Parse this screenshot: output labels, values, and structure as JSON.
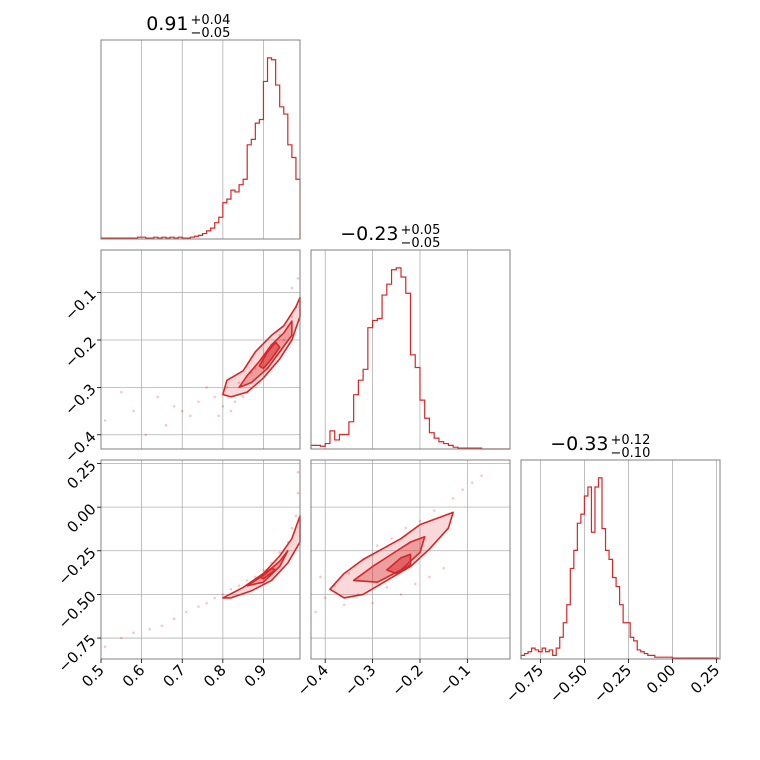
{
  "chart_data": {
    "type": "corner",
    "color": "#d62728",
    "grid": true,
    "parameters": [
      {
        "title_value": "0.91",
        "title_plus": "+0.04",
        "title_minus": "−0.05",
        "range": [
          0.5,
          0.99
        ],
        "ticks": [
          0.5,
          0.6,
          0.7,
          0.8,
          0.9
        ],
        "tick_labels": [
          "0.5",
          "0.6",
          "0.7",
          "0.8",
          "0.9"
        ],
        "hist": {
          "centers": [
            0.505,
            0.515,
            0.525,
            0.535,
            0.545,
            0.555,
            0.565,
            0.575,
            0.585,
            0.595,
            0.605,
            0.615,
            0.625,
            0.635,
            0.645,
            0.655,
            0.665,
            0.675,
            0.685,
            0.695,
            0.705,
            0.715,
            0.725,
            0.735,
            0.745,
            0.755,
            0.765,
            0.775,
            0.785,
            0.795,
            0.805,
            0.815,
            0.825,
            0.835,
            0.845,
            0.855,
            0.865,
            0.875,
            0.885,
            0.895,
            0.905,
            0.915,
            0.925,
            0.935,
            0.945,
            0.955,
            0.965,
            0.975,
            0.985
          ],
          "values": [
            0.005,
            0.005,
            0.005,
            0.005,
            0.005,
            0.005,
            0.005,
            0.005,
            0.005,
            0.01,
            0.01,
            0.005,
            0.005,
            0.01,
            0.005,
            0.01,
            0.005,
            0.01,
            0.005,
            0.01,
            0.005,
            0.005,
            0.01,
            0.015,
            0.02,
            0.03,
            0.045,
            0.06,
            0.09,
            0.12,
            0.2,
            0.22,
            0.27,
            0.26,
            0.3,
            0.33,
            0.52,
            0.55,
            0.64,
            0.66,
            0.87,
            1.0,
            0.99,
            0.85,
            0.73,
            0.69,
            0.52,
            0.45,
            0.33
          ]
        }
      },
      {
        "title_value": "−0.23",
        "title_plus": "+0.05",
        "title_minus": "−0.05",
        "range": [
          -0.43,
          -0.01
        ],
        "ticks": [
          -0.4,
          -0.3,
          -0.2,
          -0.1
        ],
        "tick_labels": [
          "−0.4",
          "−0.3",
          "−0.2",
          "−0.1"
        ],
        "hist": {
          "centers": [
            -0.425,
            -0.415,
            -0.405,
            -0.395,
            -0.385,
            -0.375,
            -0.365,
            -0.355,
            -0.345,
            -0.335,
            -0.325,
            -0.315,
            -0.305,
            -0.295,
            -0.285,
            -0.275,
            -0.265,
            -0.255,
            -0.245,
            -0.235,
            -0.225,
            -0.215,
            -0.205,
            -0.195,
            -0.185,
            -0.175,
            -0.165,
            -0.155,
            -0.145,
            -0.135,
            -0.125,
            -0.115,
            -0.105,
            -0.095,
            -0.085,
            -0.075,
            -0.065,
            -0.055,
            -0.045,
            -0.035,
            -0.025,
            -0.015
          ],
          "values": [
            0.02,
            0.02,
            0.015,
            0.03,
            0.1,
            0.05,
            0.08,
            0.08,
            0.15,
            0.3,
            0.38,
            0.44,
            0.67,
            0.71,
            0.72,
            0.85,
            0.91,
            0.99,
            1.0,
            0.95,
            0.86,
            0.52,
            0.45,
            0.27,
            0.17,
            0.09,
            0.06,
            0.04,
            0.03,
            0.02,
            0.01,
            0.005,
            0.005,
            0.005,
            0.005,
            0.005,
            0,
            0,
            0,
            0,
            0,
            0
          ]
        }
      },
      {
        "title_value": "−0.33",
        "title_plus": "+0.12",
        "title_minus": "−0.10",
        "range": [
          -0.86,
          0.27
        ],
        "ticks": [
          -0.75,
          -0.5,
          -0.25,
          0.0,
          0.25
        ],
        "tick_labels": [
          "−0.75",
          "−0.50",
          "−0.25",
          "0.00",
          "0.25"
        ],
        "hist": {
          "centers": [
            -0.85,
            -0.83,
            -0.81,
            -0.79,
            -0.77,
            -0.75,
            -0.73,
            -0.71,
            -0.69,
            -0.67,
            -0.65,
            -0.63,
            -0.61,
            -0.59,
            -0.57,
            -0.55,
            -0.53,
            -0.51,
            -0.49,
            -0.47,
            -0.45,
            -0.43,
            -0.41,
            -0.39,
            -0.37,
            -0.35,
            -0.33,
            -0.31,
            -0.29,
            -0.27,
            -0.25,
            -0.23,
            -0.21,
            -0.19,
            -0.17,
            -0.15,
            -0.13,
            -0.11,
            -0.09,
            -0.07,
            -0.05,
            -0.03,
            -0.01,
            0.01,
            0.03,
            0.05,
            0.07,
            0.09,
            0.11,
            0.13,
            0.15,
            0.17,
            0.19,
            0.21,
            0.23,
            0.25
          ],
          "values": [
            0.02,
            0.03,
            0.04,
            0.06,
            0.05,
            0.04,
            0.06,
            0.04,
            0.05,
            0.02,
            0.06,
            0.12,
            0.2,
            0.3,
            0.5,
            0.6,
            0.75,
            0.8,
            0.9,
            0.95,
            0.7,
            0.95,
            1.0,
            0.72,
            0.6,
            0.55,
            0.45,
            0.4,
            0.3,
            0.2,
            0.2,
            0.12,
            0.1,
            0.05,
            0.04,
            0.03,
            0.02,
            0.02,
            0.01,
            0.01,
            0.01,
            0.01,
            0.01,
            0.005,
            0.005,
            0.005,
            0.005,
            0.005,
            0.005,
            0.005,
            0.005,
            0.005,
            0.005,
            0.005,
            0.005,
            0.005
          ]
        }
      }
    ],
    "pairs": [
      {
        "x": 0,
        "y": 1,
        "scatter": [
          [
            0.51,
            -0.37
          ],
          [
            0.55,
            -0.31
          ],
          [
            0.58,
            -0.35
          ],
          [
            0.61,
            -0.4
          ],
          [
            0.64,
            -0.32
          ],
          [
            0.66,
            -0.38
          ],
          [
            0.68,
            -0.34
          ],
          [
            0.7,
            -0.35
          ],
          [
            0.72,
            -0.36
          ],
          [
            0.74,
            -0.33
          ],
          [
            0.76,
            -0.3
          ],
          [
            0.78,
            -0.32
          ],
          [
            0.79,
            -0.36
          ],
          [
            0.8,
            -0.34
          ],
          [
            0.81,
            -0.3
          ],
          [
            0.82,
            -0.35
          ],
          [
            0.83,
            -0.33
          ],
          [
            0.84,
            -0.29
          ],
          [
            0.85,
            -0.32
          ],
          [
            0.86,
            -0.31
          ],
          [
            0.87,
            -0.27
          ],
          [
            0.88,
            -0.26
          ],
          [
            0.89,
            -0.29
          ],
          [
            0.9,
            -0.24
          ],
          [
            0.91,
            -0.26
          ],
          [
            0.92,
            -0.21
          ],
          [
            0.93,
            -0.23
          ],
          [
            0.94,
            -0.19
          ],
          [
            0.95,
            -0.2
          ],
          [
            0.96,
            -0.17
          ],
          [
            0.97,
            -0.15
          ],
          [
            0.98,
            -0.13
          ],
          [
            0.985,
            -0.07
          ],
          [
            0.97,
            -0.09
          ]
        ],
        "contours": [
          {
            "level": "outer",
            "points": [
              [
                0.8,
                -0.315
              ],
              [
                0.81,
                -0.285
              ],
              [
                0.85,
                -0.265
              ],
              [
                0.88,
                -0.225
              ],
              [
                0.92,
                -0.19
              ],
              [
                0.95,
                -0.17
              ],
              [
                0.98,
                -0.13
              ],
              [
                0.99,
                -0.11
              ],
              [
                0.99,
                -0.15
              ],
              [
                0.97,
                -0.2
              ],
              [
                0.94,
                -0.24
              ],
              [
                0.9,
                -0.28
              ],
              [
                0.86,
                -0.31
              ],
              [
                0.82,
                -0.32
              ]
            ]
          },
          {
            "level": "mid",
            "points": [
              [
                0.84,
                -0.3
              ],
              [
                0.86,
                -0.275
              ],
              [
                0.89,
                -0.245
              ],
              [
                0.92,
                -0.21
              ],
              [
                0.95,
                -0.185
              ],
              [
                0.97,
                -0.16
              ],
              [
                0.97,
                -0.19
              ],
              [
                0.94,
                -0.225
              ],
              [
                0.91,
                -0.26
              ],
              [
                0.87,
                -0.29
              ]
            ]
          },
          {
            "level": "inner",
            "points": [
              [
                0.89,
                -0.255
              ],
              [
                0.91,
                -0.225
              ],
              [
                0.93,
                -0.205
              ],
              [
                0.94,
                -0.215
              ],
              [
                0.92,
                -0.24
              ],
              [
                0.9,
                -0.26
              ]
            ]
          }
        ]
      },
      {
        "x": 0,
        "y": 2,
        "scatter": [
          [
            0.51,
            -0.8
          ],
          [
            0.55,
            -0.75
          ],
          [
            0.58,
            -0.72
          ],
          [
            0.62,
            -0.7
          ],
          [
            0.65,
            -0.68
          ],
          [
            0.68,
            -0.64
          ],
          [
            0.71,
            -0.6
          ],
          [
            0.74,
            -0.57
          ],
          [
            0.76,
            -0.55
          ],
          [
            0.78,
            -0.52
          ],
          [
            0.8,
            -0.5
          ],
          [
            0.82,
            -0.47
          ],
          [
            0.84,
            -0.45
          ],
          [
            0.86,
            -0.42
          ],
          [
            0.88,
            -0.4
          ],
          [
            0.9,
            -0.36
          ],
          [
            0.92,
            -0.32
          ],
          [
            0.94,
            -0.26
          ],
          [
            0.96,
            -0.2
          ],
          [
            0.97,
            -0.12
          ],
          [
            0.98,
            -0.05
          ],
          [
            0.985,
            0.08
          ],
          [
            0.985,
            0.2
          ]
        ],
        "contours": [
          {
            "level": "outer",
            "points": [
              [
                0.8,
                -0.52
              ],
              [
                0.85,
                -0.46
              ],
              [
                0.9,
                -0.38
              ],
              [
                0.94,
                -0.28
              ],
              [
                0.97,
                -0.18
              ],
              [
                0.99,
                -0.05
              ],
              [
                0.99,
                -0.2
              ],
              [
                0.96,
                -0.32
              ],
              [
                0.92,
                -0.42
              ],
              [
                0.87,
                -0.48
              ],
              [
                0.82,
                -0.52
              ]
            ]
          },
          {
            "level": "mid",
            "points": [
              [
                0.86,
                -0.45
              ],
              [
                0.9,
                -0.39
              ],
              [
                0.94,
                -0.31
              ],
              [
                0.96,
                -0.25
              ],
              [
                0.94,
                -0.34
              ],
              [
                0.9,
                -0.43
              ]
            ]
          },
          {
            "level": "inner",
            "points": [
              [
                0.89,
                -0.4
              ],
              [
                0.92,
                -0.35
              ],
              [
                0.93,
                -0.36
              ],
              [
                0.9,
                -0.41
              ]
            ]
          }
        ]
      },
      {
        "x": 1,
        "y": 2,
        "scatter": [
          [
            -0.42,
            -0.6
          ],
          [
            -0.41,
            -0.4
          ],
          [
            -0.4,
            -0.52
          ],
          [
            -0.38,
            -0.45
          ],
          [
            -0.36,
            -0.56
          ],
          [
            -0.35,
            -0.38
          ],
          [
            -0.33,
            -0.5
          ],
          [
            -0.32,
            -0.3
          ],
          [
            -0.3,
            -0.55
          ],
          [
            -0.29,
            -0.22
          ],
          [
            -0.27,
            -0.46
          ],
          [
            -0.26,
            -0.18
          ],
          [
            -0.24,
            -0.5
          ],
          [
            -0.23,
            -0.12
          ],
          [
            -0.21,
            -0.44
          ],
          [
            -0.2,
            -0.08
          ],
          [
            -0.18,
            -0.4
          ],
          [
            -0.17,
            -0.02
          ],
          [
            -0.15,
            -0.35
          ],
          [
            -0.13,
            0.05
          ],
          [
            -0.11,
            0.1
          ],
          [
            -0.09,
            0.14
          ],
          [
            -0.07,
            0.18
          ]
        ],
        "contours": [
          {
            "level": "outer",
            "points": [
              [
                -0.39,
                -0.47
              ],
              [
                -0.36,
                -0.38
              ],
              [
                -0.32,
                -0.3
              ],
              [
                -0.28,
                -0.24
              ],
              [
                -0.24,
                -0.18
              ],
              [
                -0.2,
                -0.1
              ],
              [
                -0.16,
                -0.06
              ],
              [
                -0.13,
                -0.03
              ],
              [
                -0.14,
                -0.12
              ],
              [
                -0.18,
                -0.24
              ],
              [
                -0.22,
                -0.34
              ],
              [
                -0.27,
                -0.42
              ],
              [
                -0.32,
                -0.5
              ],
              [
                -0.36,
                -0.52
              ]
            ]
          },
          {
            "level": "mid",
            "points": [
              [
                -0.34,
                -0.42
              ],
              [
                -0.3,
                -0.34
              ],
              [
                -0.26,
                -0.27
              ],
              [
                -0.22,
                -0.2
              ],
              [
                -0.19,
                -0.17
              ],
              [
                -0.2,
                -0.26
              ],
              [
                -0.24,
                -0.36
              ],
              [
                -0.29,
                -0.43
              ]
            ]
          },
          {
            "level": "inner",
            "points": [
              [
                -0.27,
                -0.36
              ],
              [
                -0.24,
                -0.29
              ],
              [
                -0.22,
                -0.27
              ],
              [
                -0.22,
                -0.33
              ],
              [
                -0.25,
                -0.38
              ]
            ]
          }
        ]
      }
    ]
  }
}
